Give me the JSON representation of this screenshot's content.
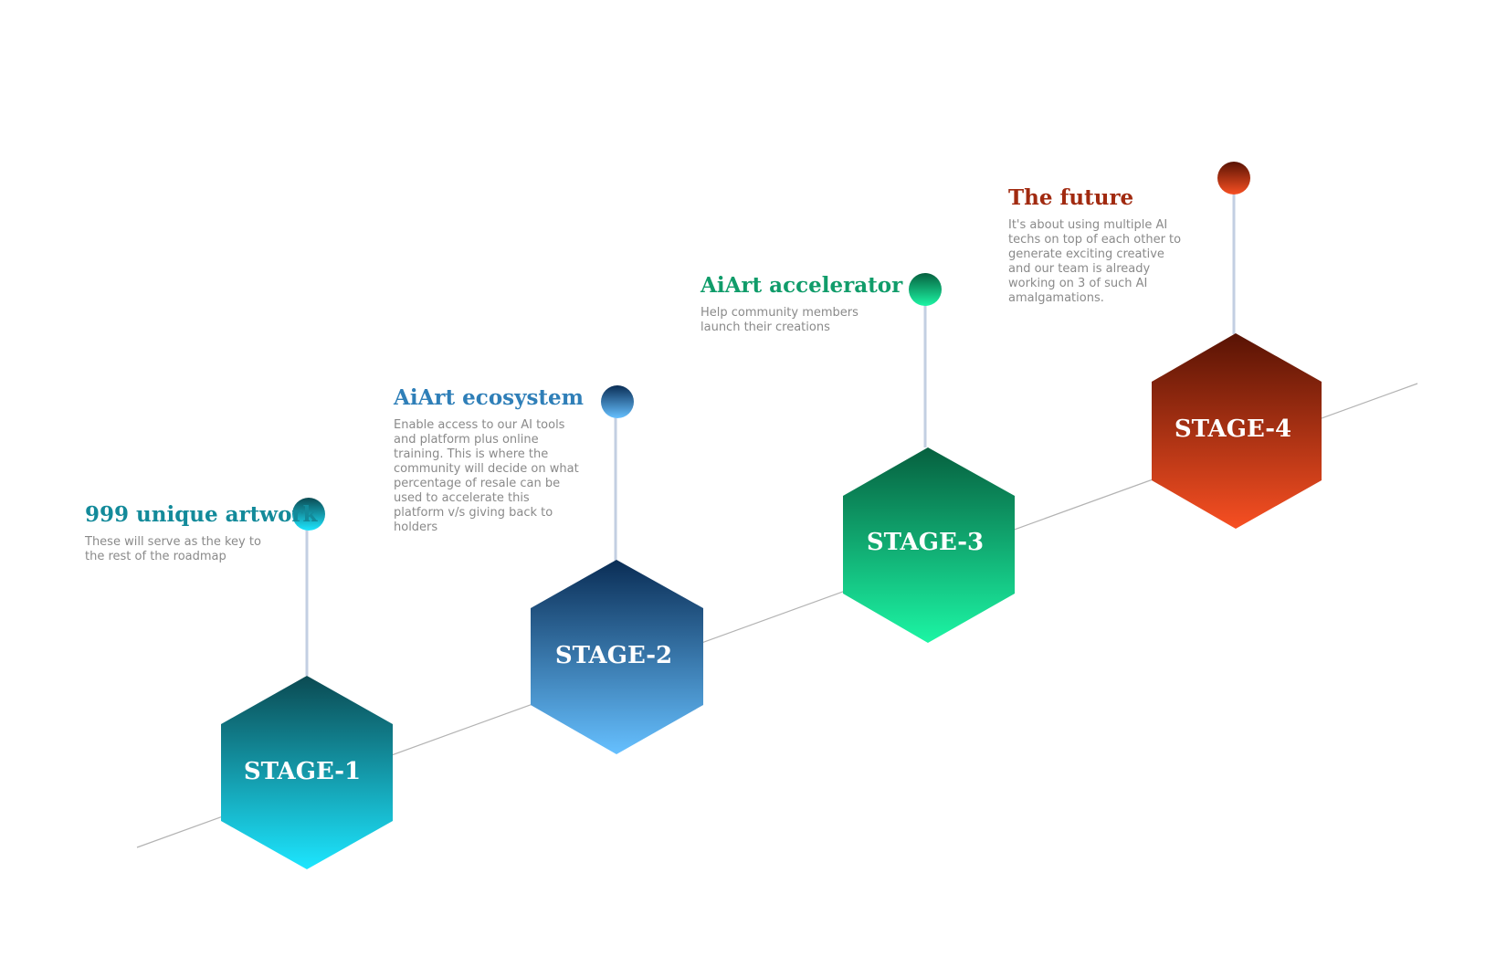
{
  "stages": [
    {
      "label": "STAGE-1",
      "title": "999 unique artwork",
      "description": "These will serve as the key to the rest of the roadmap",
      "title_color": "#138a9a",
      "gradient_top": "#0b4a52",
      "gradient_bottom": "#1de6ff"
    },
    {
      "label": "STAGE-2",
      "title": "AiArt ecosystem",
      "description": "Enable access to our AI tools and platform plus online training. This is where the community will decide on what percentage of resale can be used to accelerate this platform v/s giving back to holders",
      "title_color": "#2f7fb8",
      "gradient_top": "#0a2d55",
      "gradient_bottom": "#66c0ff"
    },
    {
      "label": "STAGE-3",
      "title": "AiArt accelerator",
      "description": "Help community members launch their creations",
      "title_color": "#109c6a",
      "gradient_top": "#06603f",
      "gradient_bottom": "#1cf5a4"
    },
    {
      "label": "STAGE-4",
      "title": "The future",
      "description": "It's about using multiple AI techs on top of each other to generate exciting creative and our team is already working on 3 of such AI amalgamations.",
      "title_color": "#a12a10",
      "gradient_top": "#581304",
      "gradient_bottom": "#f74f22"
    }
  ],
  "colors": {
    "connector": "#c3cfe2",
    "baseline": "#b3b3b3"
  }
}
